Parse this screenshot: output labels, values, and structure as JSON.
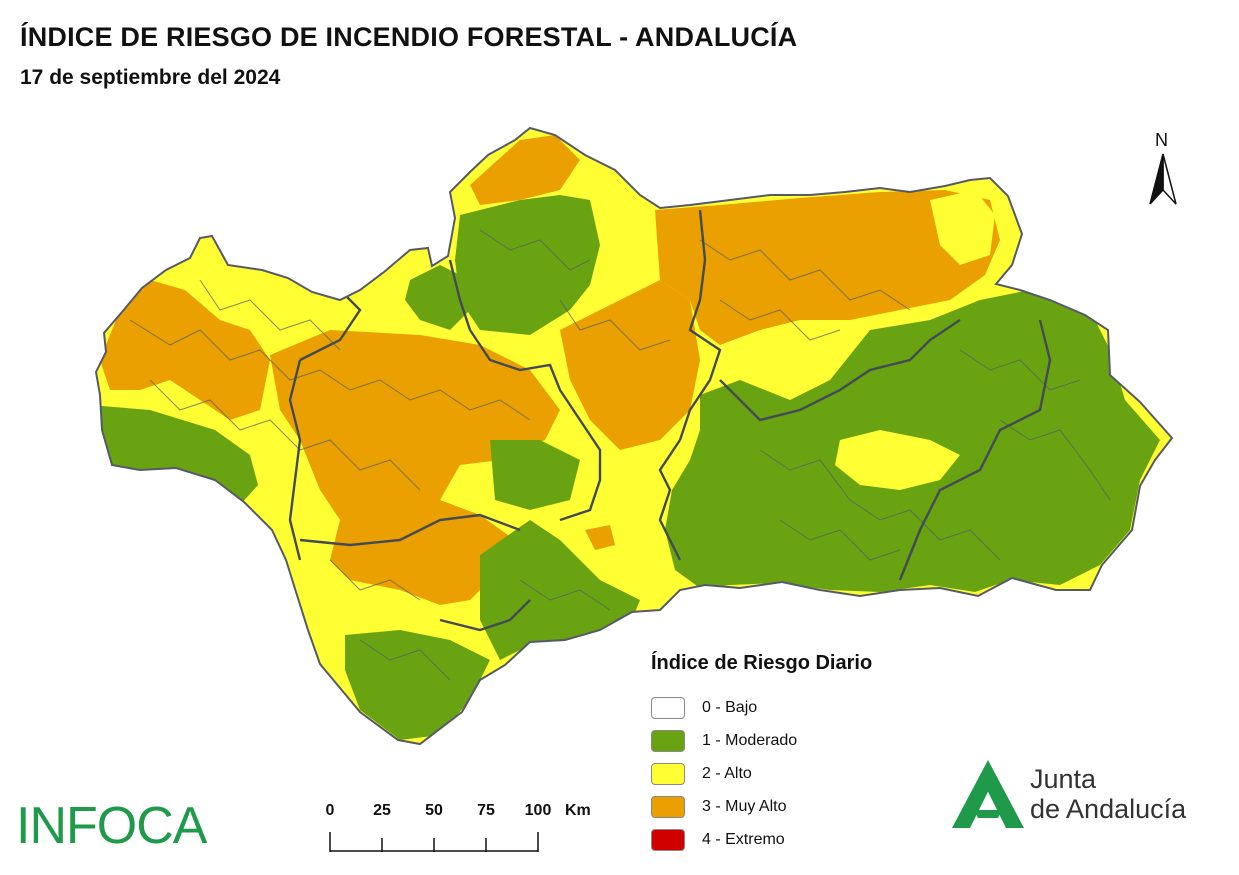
{
  "header": {
    "title": "ÍNDICE DE RIESGO DE INCENDIO FORESTAL - ANDALUCÍA",
    "date": "17 de septiembre del 2024"
  },
  "north_arrow": {
    "label": "N"
  },
  "legend": {
    "title": "Índice de Riesgo Diario",
    "items": [
      {
        "label": "0 - Bajo",
        "color": "#ffffff"
      },
      {
        "label": "1 - Moderado",
        "color": "#6aa312"
      },
      {
        "label": "2 - Alto",
        "color": "#ffff33"
      },
      {
        "label": "3 - Muy Alto",
        "color": "#e9a000"
      },
      {
        "label": "4 - Extremo",
        "color": "#d00000"
      }
    ]
  },
  "scale_bar": {
    "ticks": [
      "0",
      "25",
      "50",
      "75",
      "100"
    ],
    "unit": "Km"
  },
  "logos": {
    "infoca": "INFOCA",
    "junta_line1": "Junta",
    "junta_line2": "de Andalucía",
    "junta_color": "#1f9a4a"
  },
  "map_colors": {
    "moderado": "#6aa312",
    "alto": "#ffff33",
    "muy_alto": "#e9a000",
    "border": "#555a66"
  }
}
